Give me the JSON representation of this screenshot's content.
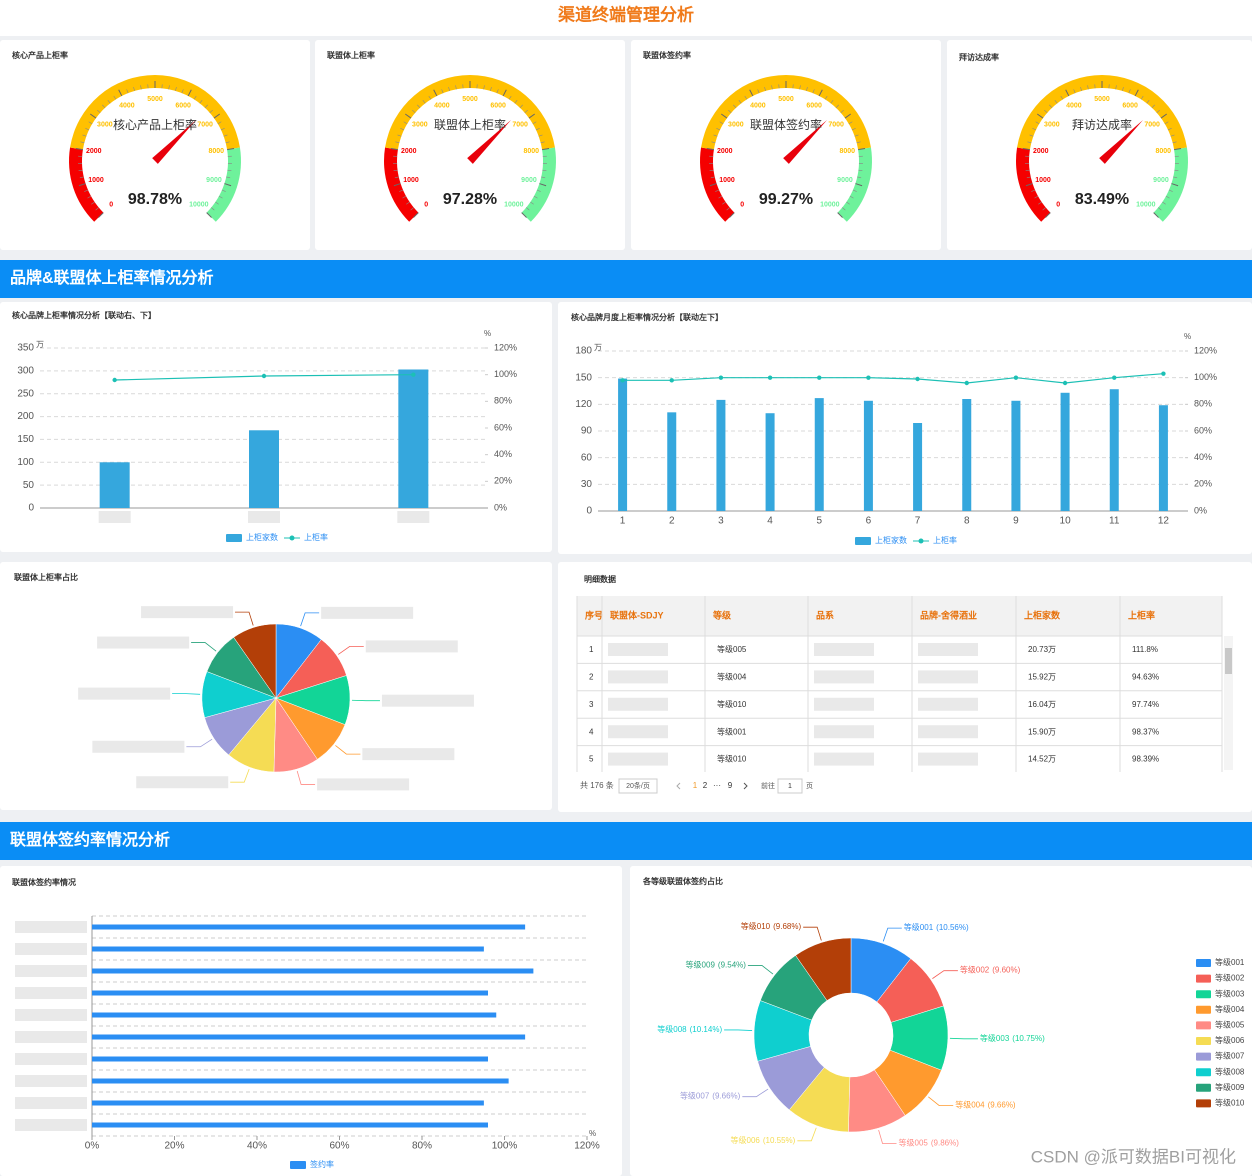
{
  "header": {
    "title": "渠道终端管理分析"
  },
  "sections": [
    "品牌&联盟体上柜率情况分析",
    "联盟体签约率情况分析"
  ],
  "chart_data": [
    {
      "type": "gauge",
      "title": "核心产品上柜率",
      "name": "核心产品上柜率",
      "value": 98.78,
      "value_label": "98.78%",
      "lim": [
        0,
        10000
      ],
      "ticks": [
        0,
        1000,
        2000,
        3000,
        4000,
        5000,
        6000,
        7000,
        8000,
        9000,
        10000
      ],
      "bands": [
        {
          "to": 2000,
          "color": "#f50000"
        },
        {
          "to": 8000,
          "color": "#ffc000"
        },
        {
          "to": 10000,
          "color": "#6ef29b"
        }
      ]
    },
    {
      "type": "gauge",
      "title": "联盟体上柜率",
      "name": "联盟体上柜率",
      "value": 97.28,
      "value_label": "97.28%",
      "lim": [
        0,
        10000
      ],
      "ticks": [
        0,
        1000,
        2000,
        3000,
        4000,
        5000,
        6000,
        7000,
        8000,
        9000,
        10000
      ],
      "bands": [
        {
          "to": 2000,
          "color": "#f50000"
        },
        {
          "to": 8000,
          "color": "#ffc000"
        },
        {
          "to": 10000,
          "color": "#6ef29b"
        }
      ]
    },
    {
      "type": "gauge",
      "title": "联盟体签约率",
      "name": "联盟体签约率",
      "value": 99.27,
      "value_label": "99.27%",
      "lim": [
        0,
        10000
      ],
      "ticks": [
        0,
        1000,
        2000,
        3000,
        4000,
        5000,
        6000,
        7000,
        8000,
        9000,
        10000
      ],
      "bands": [
        {
          "to": 2000,
          "color": "#f50000"
        },
        {
          "to": 8000,
          "color": "#ffc000"
        },
        {
          "to": 10000,
          "color": "#6ef29b"
        }
      ]
    },
    {
      "type": "gauge",
      "title": "拜访达成率",
      "name": "拜访达成率",
      "value": 83.49,
      "value_label": "83.49%",
      "lim": [
        0,
        10000
      ],
      "ticks": [
        0,
        1000,
        2000,
        3000,
        4000,
        5000,
        6000,
        7000,
        8000,
        9000,
        10000
      ],
      "bands": [
        {
          "to": 2000,
          "color": "#f50000"
        },
        {
          "to": 8000,
          "color": "#ffc000"
        },
        {
          "to": 10000,
          "color": "#6ef29b"
        }
      ]
    },
    {
      "type": "bar",
      "title": "核心品牌上柜率情况分析【联动右、下】",
      "categories": [
        null,
        null,
        null
      ],
      "series": [
        {
          "name": "上柜家数",
          "type": "bar",
          "color": "#35a7dd",
          "values": [
            100,
            170,
            303
          ]
        },
        {
          "name": "上柜率",
          "type": "line",
          "axis": "y2",
          "color": "#1cc0b5",
          "values": [
            96,
            99,
            100
          ]
        }
      ],
      "y_unit": "万",
      "y2_unit": "%",
      "ylim": [
        0,
        350
      ],
      "yticks": [
        0,
        50,
        100,
        150,
        200,
        250,
        300,
        350
      ],
      "y2lim": [
        0,
        120
      ],
      "y2ticks": [
        {
          "value": 0,
          "label": "0%"
        },
        {
          "value": 20,
          "label": "20%"
        },
        {
          "value": 40,
          "label": "40%"
        },
        {
          "value": 60,
          "label": "60%"
        },
        {
          "value": 80,
          "label": "80%"
        },
        {
          "value": 100,
          "label": "100%"
        },
        {
          "value": 120,
          "label": "120%"
        }
      ],
      "grid": true
    },
    {
      "type": "bar",
      "title": "核心品牌月度上柜率情况分析【联动左下】",
      "categories": [
        "1",
        "2",
        "3",
        "4",
        "5",
        "6",
        "7",
        "8",
        "9",
        "10",
        "11",
        "12"
      ],
      "series": [
        {
          "name": "上柜家数",
          "type": "bar",
          "color": "#35a7dd",
          "values": [
            149,
            111,
            125,
            110,
            127,
            124,
            99,
            126,
            124,
            133,
            137,
            119
          ]
        },
        {
          "name": "上柜率",
          "type": "line",
          "axis": "y2",
          "color": "#1cc0b5",
          "values": [
            98,
            98,
            100,
            100,
            100,
            100,
            99,
            96,
            100,
            96,
            100,
            103
          ]
        }
      ],
      "y_unit": "万",
      "y2_unit": "%",
      "ylim": [
        0,
        180
      ],
      "yticks": [
        0,
        30,
        60,
        90,
        120,
        150,
        180
      ],
      "y2lim": [
        0,
        120
      ],
      "y2ticks": [
        {
          "value": 0,
          "label": "0%"
        },
        {
          "value": 20,
          "label": "20%"
        },
        {
          "value": 40,
          "label": "40%"
        },
        {
          "value": 60,
          "label": "60%"
        },
        {
          "value": 80,
          "label": "80%"
        },
        {
          "value": 100,
          "label": "100%"
        },
        {
          "value": 120,
          "label": "120%"
        }
      ],
      "grid": true
    },
    {
      "type": "pie",
      "title": "联盟体上柜率占比",
      "categories": [
        null,
        null,
        null,
        null,
        null,
        null,
        null,
        null,
        null,
        null
      ],
      "values": [
        10.5,
        9.6,
        10.8,
        9.7,
        9.9,
        10.6,
        9.7,
        10.1,
        9.5,
        9.7
      ],
      "colors": [
        "#2b8ef3",
        "#f55f57",
        "#12d597",
        "#ff9a2e",
        "#ff8b85",
        "#f5dc54",
        "#9b9bd8",
        "#0fcfcf",
        "#27a37b",
        "#b33f08"
      ],
      "donut": false
    },
    {
      "type": "hbar",
      "title": "联盟体签约率情况",
      "categories": [
        null,
        null,
        null,
        null,
        null,
        null,
        null,
        null,
        null,
        null
      ],
      "series": [
        {
          "name": "签约率",
          "color": "#2b8ef3",
          "values": [
            105,
            95,
            107,
            96,
            98,
            105,
            96,
            101,
            95,
            96
          ]
        }
      ],
      "x_unit": "%",
      "xlim": [
        0,
        120
      ],
      "xticks": [
        {
          "value": 0,
          "label": "0%"
        },
        {
          "value": 20,
          "label": "20%"
        },
        {
          "value": 40,
          "label": "40%"
        },
        {
          "value": 60,
          "label": "60%"
        },
        {
          "value": 80,
          "label": "80%"
        },
        {
          "value": 100,
          "label": "100%"
        },
        {
          "value": 120,
          "label": "120%"
        }
      ]
    },
    {
      "type": "pie",
      "title": "各等级联盟体签约占比",
      "categories": [
        "等级001",
        "等级002",
        "等级003",
        "等级004",
        "等级005",
        "等级006",
        "等级007",
        "等级008",
        "等级009",
        "等级010"
      ],
      "values": [
        10.56,
        9.6,
        10.75,
        9.66,
        9.86,
        10.55,
        9.66,
        10.14,
        9.54,
        9.68
      ],
      "value_labels": [
        "(10.56%)",
        "(9.60%)",
        "(10.75%)",
        "(9.66%)",
        "(9.86%)",
        "(10.55%)",
        "(9.66%)",
        "(10.14%)",
        "(9.54%)",
        "(9.68%)"
      ],
      "colors": [
        "#2b8ef3",
        "#f55f57",
        "#12d597",
        "#ff9a2e",
        "#ff8b85",
        "#f5dc54",
        "#9b9bd8",
        "#0fcfcf",
        "#27a37b",
        "#b33f08"
      ],
      "donut": true,
      "legend": "right"
    }
  ],
  "table": {
    "title": "明细数据",
    "columns": [
      "序号",
      "联盟体-SDJY",
      "等级",
      "品系",
      "品牌-舍得酒业",
      "上柜家数",
      "上柜率"
    ],
    "rows": [
      [
        1,
        null,
        "等级005",
        null,
        null,
        "20.73万",
        "111.8%"
      ],
      [
        2,
        null,
        "等级004",
        null,
        null,
        "15.92万",
        "94.63%"
      ],
      [
        3,
        null,
        "等级010",
        null,
        null,
        "16.04万",
        "97.74%"
      ],
      [
        4,
        null,
        "等级001",
        null,
        null,
        "15.90万",
        "98.37%"
      ],
      [
        5,
        null,
        "等级010",
        null,
        null,
        "14.52万",
        "98.39%"
      ]
    ],
    "pagination": {
      "total": "共 176 条",
      "page_size": "20条/页",
      "pages": [
        "1",
        "2",
        "···",
        "9"
      ],
      "goto": "前往",
      "current": "1",
      "unit": "页"
    }
  },
  "watermark": "CSDN @派可数据BI可视化"
}
